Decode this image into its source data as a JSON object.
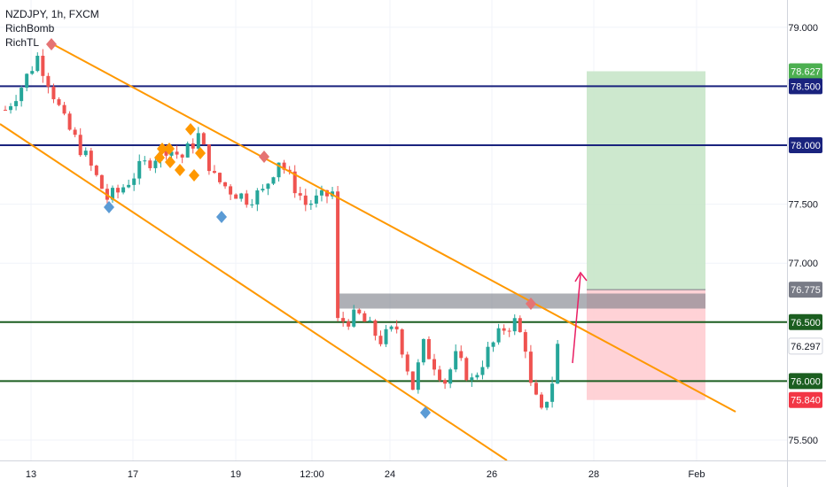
{
  "legend": {
    "symbol": "NZDJPY, 1h, FXCM",
    "indicator_1": "RichBomb",
    "indicator_2": "RichTL"
  },
  "colors": {
    "bull": "#26a69a",
    "bear": "#ef5350",
    "channel": "#ff9800",
    "resistance": "#1a237e",
    "support": "#1b5e20",
    "zone": "#787b86",
    "target": "#c8e6c9",
    "stop": "#ffcdd2",
    "arrow": "#e91e63",
    "diamond_up": "#5b9bd5",
    "diamond_down": "#e57373",
    "diamond_mid": "#ff9800"
  },
  "chart_data": {
    "type": "candlestick",
    "title": "NZDJPY, 1h, FXCM",
    "ylim": [
      75.35,
      79.25
    ],
    "y_ticks": [
      "79.000",
      "78.500",
      "78.000",
      "77.500",
      "77.000",
      "76.500",
      "76.000",
      "75.500"
    ],
    "x_ticks": [
      "13",
      "17",
      "19",
      "12:00",
      "24",
      "26",
      "28",
      "Feb"
    ],
    "price_labels": [
      {
        "label": "78.627",
        "value": 78.627,
        "kind": "target"
      },
      {
        "label": "78.500",
        "value": 78.5,
        "kind": "resistance"
      },
      {
        "label": "78.000",
        "value": 78.0,
        "kind": "resistance"
      },
      {
        "label": "76.775",
        "value": 76.775,
        "kind": "entry"
      },
      {
        "label": "76.500",
        "value": 76.5,
        "kind": "support"
      },
      {
        "label": "76.297",
        "value": 76.297,
        "kind": "last"
      },
      {
        "label": "76.000",
        "value": 76.0,
        "kind": "support"
      },
      {
        "label": "75.840",
        "value": 75.84,
        "kind": "stop"
      }
    ],
    "horizontal_levels": [
      78.5,
      78.0,
      76.5,
      76.0
    ],
    "resistance_zone": [
      76.65,
      76.78
    ],
    "position": {
      "entry": 76.775,
      "target": 78.627,
      "stop": 75.84
    },
    "price_path": [
      [
        0,
        78.3
      ],
      [
        3,
        78.5
      ],
      [
        6,
        78.75
      ],
      [
        8,
        78.55
      ],
      [
        11,
        78.2
      ],
      [
        15,
        77.9
      ],
      [
        19,
        77.55
      ],
      [
        21,
        77.6
      ],
      [
        25,
        77.8
      ],
      [
        30,
        77.98
      ],
      [
        33,
        77.9
      ],
      [
        36,
        78.08
      ],
      [
        39,
        77.72
      ],
      [
        42,
        77.62
      ],
      [
        45,
        77.55
      ],
      [
        48,
        77.6
      ],
      [
        51,
        77.88
      ],
      [
        53,
        77.72
      ],
      [
        56,
        77.5
      ],
      [
        59,
        77.55
      ],
      [
        61,
        77.6
      ],
      [
        62,
        76.5
      ],
      [
        66,
        76.55
      ],
      [
        70,
        76.35
      ],
      [
        73,
        76.45
      ],
      [
        76,
        75.95
      ],
      [
        78,
        76.3
      ],
      [
        82,
        76.0
      ],
      [
        84,
        76.2
      ],
      [
        87,
        76.0
      ],
      [
        90,
        76.25
      ],
      [
        93,
        76.45
      ],
      [
        95,
        76.5
      ],
      [
        97,
        76.3
      ],
      [
        98,
        75.95
      ],
      [
        100,
        75.72
      ],
      [
        102,
        76.0
      ],
      [
        103,
        76.3
      ]
    ],
    "channel_upper": [
      [
        78.8,
        0
      ],
      [
        75.7,
        0
      ]
    ],
    "markers": [
      {
        "type": "top",
        "value": 78.85
      },
      {
        "type": "top",
        "value": 77.92
      },
      {
        "type": "top",
        "value": 76.67
      },
      {
        "type": "bottom",
        "value": 77.48
      },
      {
        "type": "bottom",
        "value": 77.4
      },
      {
        "type": "bottom",
        "value": 75.82
      }
    ]
  }
}
